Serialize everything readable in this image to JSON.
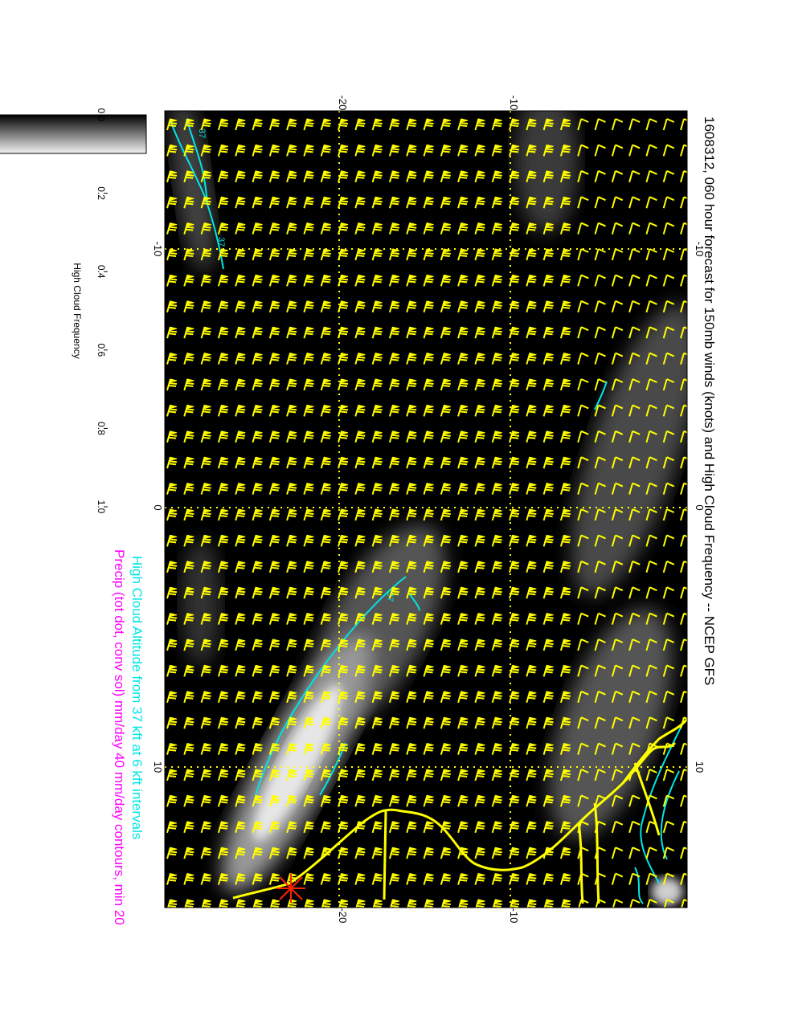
{
  "title": "1608312, 060 hour forecast for 150mb winds (knots) and High Cloud Frequency -- NCEP GFS",
  "subtitle_cyan": "High Cloud Altitude from 37 kft at 6 kft intervals",
  "subtitle_magenta": "Precip (tot dot, conv sol) mm/day 40 mm/day contours, min 20",
  "colorbar": {
    "label": "High Cloud Frequency",
    "ticks": [
      "0.0",
      "0.2",
      "0.4",
      "0.6",
      "0.8",
      "1.0"
    ]
  },
  "axes": {
    "top_ticks": [
      "-20",
      "-10"
    ],
    "bottom_ticks": [
      "-20",
      "-10"
    ],
    "left_ticks": [
      "-10",
      "0",
      "10"
    ],
    "right_ticks": [
      "-10",
      "0",
      "10"
    ]
  },
  "contour_labels": [
    "37",
    "37",
    "37"
  ],
  "colors": {
    "wind_barbs": "#ffff00",
    "coastline": "#ffff00",
    "grid": "#ffff00",
    "cloud_altitude_contour": "#00e5e5",
    "precip_text": "#ff00ff",
    "marker": "#ff2200",
    "background": "#000000"
  }
}
